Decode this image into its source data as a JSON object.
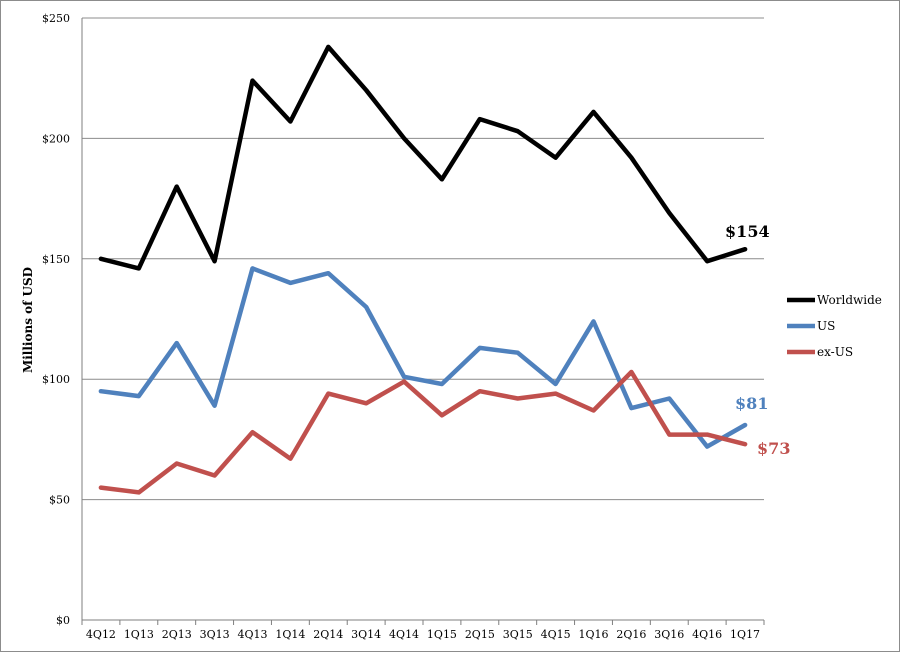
{
  "chart_data": {
    "type": "line",
    "title": "",
    "xlabel": "",
    "ylabel": "Millions of USD",
    "ylim": [
      0,
      250
    ],
    "yticks": [
      0,
      50,
      100,
      150,
      200,
      250
    ],
    "ytick_labels": [
      "$0",
      "$50",
      "$100",
      "$150",
      "$200",
      "$250"
    ],
    "grid": "horizontal",
    "legend_position": "right",
    "categories": [
      "4Q12",
      "1Q13",
      "2Q13",
      "3Q13",
      "4Q13",
      "1Q14",
      "2Q14",
      "3Q14",
      "4Q14",
      "1Q15",
      "2Q15",
      "3Q15",
      "4Q15",
      "1Q16",
      "2Q16",
      "3Q16",
      "4Q16",
      "1Q17"
    ],
    "series": [
      {
        "name": "Worldwide",
        "color": "#000000",
        "values": [
          150,
          146,
          180,
          149,
          224,
          207,
          238,
          220,
          200,
          183,
          208,
          203,
          192,
          211,
          192,
          169,
          149,
          154
        ],
        "end_label": "$154"
      },
      {
        "name": "US",
        "color": "#4f81bd",
        "values": [
          95,
          93,
          115,
          89,
          146,
          140,
          144,
          130,
          101,
          98,
          113,
          111,
          98,
          124,
          88,
          92,
          72,
          81
        ],
        "end_label": "$81"
      },
      {
        "name": "ex-US",
        "color": "#c0504d",
        "values": [
          55,
          53,
          65,
          60,
          78,
          67,
          94,
          90,
          99,
          85,
          95,
          92,
          94,
          87,
          103,
          77,
          77,
          73
        ],
        "end_label": "$73"
      }
    ]
  }
}
